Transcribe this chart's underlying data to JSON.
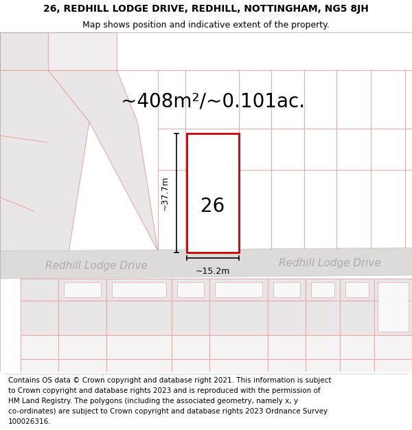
{
  "title_line1": "26, REDHILL LODGE DRIVE, REDHILL, NOTTINGHAM, NG5 8JH",
  "title_line2": "Map shows position and indicative extent of the property.",
  "area_text": "~408m²/~0.101ac.",
  "property_number": "26",
  "dim_height": "~37.7m",
  "dim_width": "~15.2m",
  "road_name_left": "Redhill Lodge Drive",
  "road_name_right": "Redhill Lodge Drive",
  "footer_lines": [
    "Contains OS data © Crown copyright and database right 2021. This information is subject",
    "to Crown copyright and database rights 2023 and is reproduced with the permission of",
    "HM Land Registry. The polygons (including the associated geometry, namely x, y",
    "co-ordinates) are subject to Crown copyright and database rights 2023 Ordnance Survey",
    "100026316."
  ],
  "map_bg": "#f7f4f4",
  "road_color": "#dddada",
  "road_outline_color": "#c8c4c4",
  "plot_outline_color": "#cc0000",
  "plot_fill_color": "#ffffff",
  "prop_line_color": "#e8aaaa",
  "prop_fill_color": "#eeeeee",
  "gray_fill": "#e8e6e6",
  "title_fontsize": 10,
  "subtitle_fontsize": 9,
  "area_fontsize": 20,
  "footer_fontsize": 7.5,
  "road_name_fontsize": 11,
  "prop_number_fontsize": 20
}
